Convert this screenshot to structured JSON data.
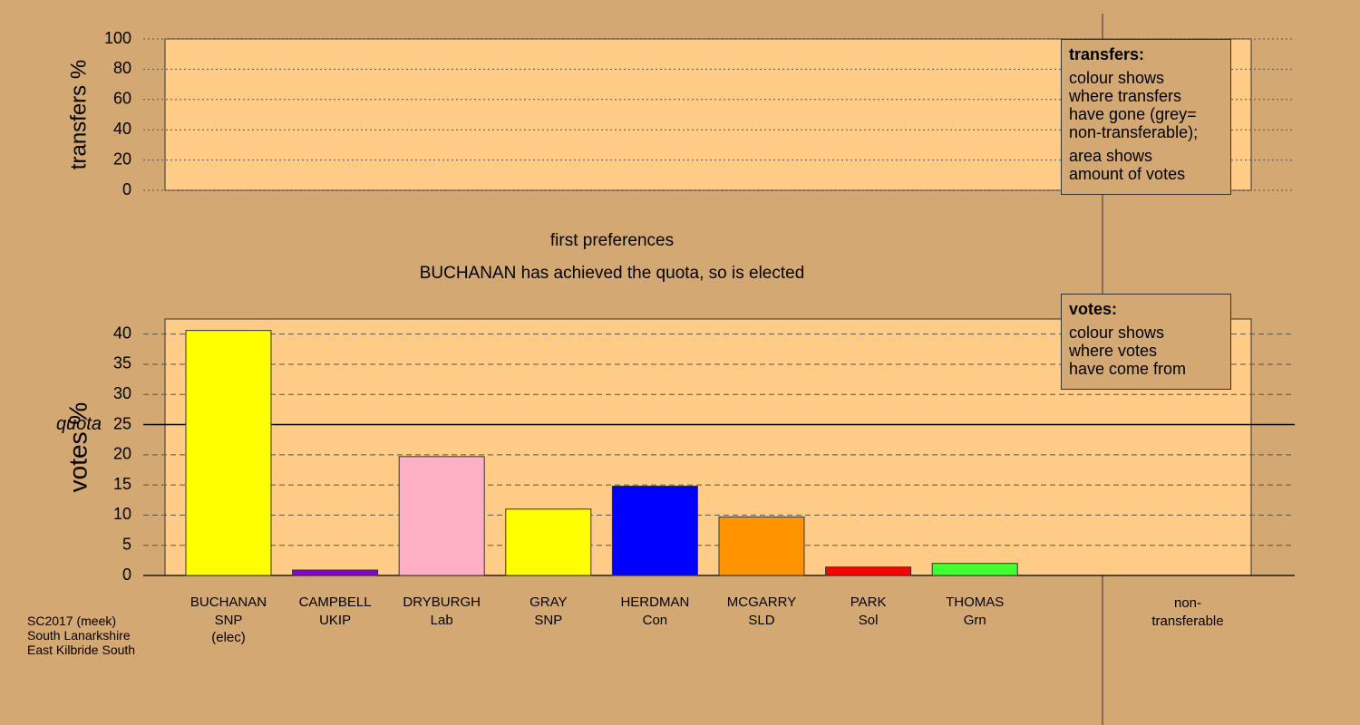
{
  "chart_data": [
    {
      "type": "panel",
      "ylabel": "transfers %",
      "ylim": [
        0,
        100
      ],
      "yticks": [
        0,
        20,
        40,
        60,
        80,
        100
      ],
      "grid": true,
      "legend": {
        "title": "transfers:",
        "lines": [
          [
            "colour shows",
            "where transfers",
            "have gone (grey=",
            "non-transferable);"
          ],
          [
            "area shows",
            "amount of votes"
          ]
        ]
      }
    },
    {
      "type": "bar",
      "title": "first preferences",
      "subtitle": "BUCHANAN has achieved the quota, so is elected",
      "ylabel": "votes %",
      "ylim": [
        0,
        42.5
      ],
      "yticks": [
        0,
        5,
        10,
        15,
        20,
        25,
        30,
        35,
        40
      ],
      "grid": true,
      "quota": {
        "value": 25,
        "label": "quota"
      },
      "categories": [
        "BUCHANAN",
        "CAMPBELL",
        "DRYBURGH",
        "GRAY",
        "HERDMAN",
        "MCGARRY",
        "PARK",
        "THOMAS"
      ],
      "parties": [
        "SNP",
        "UKIP",
        "Lab",
        "SNP",
        "Con",
        "SLD",
        "Sol",
        "Grn"
      ],
      "notes": [
        "(elec)",
        null,
        null,
        null,
        null,
        null,
        null,
        null
      ],
      "values": [
        40.6,
        0.9,
        19.7,
        11.0,
        14.8,
        9.7,
        1.4,
        2.0
      ],
      "colors": [
        "#ffff00",
        "#8a00d0",
        "#ffb0c4",
        "#ffff00",
        "#0000ff",
        "#ff9400",
        "#ff0000",
        "#40ff30"
      ],
      "extra_category": "non-transferable",
      "legend": {
        "title": "votes:",
        "lines": [
          [
            "colour shows",
            "where votes",
            "have come from"
          ]
        ]
      }
    }
  ],
  "footer": [
    "SC2017 (meek)",
    "South Lanarkshire",
    "East Kilbride South"
  ]
}
